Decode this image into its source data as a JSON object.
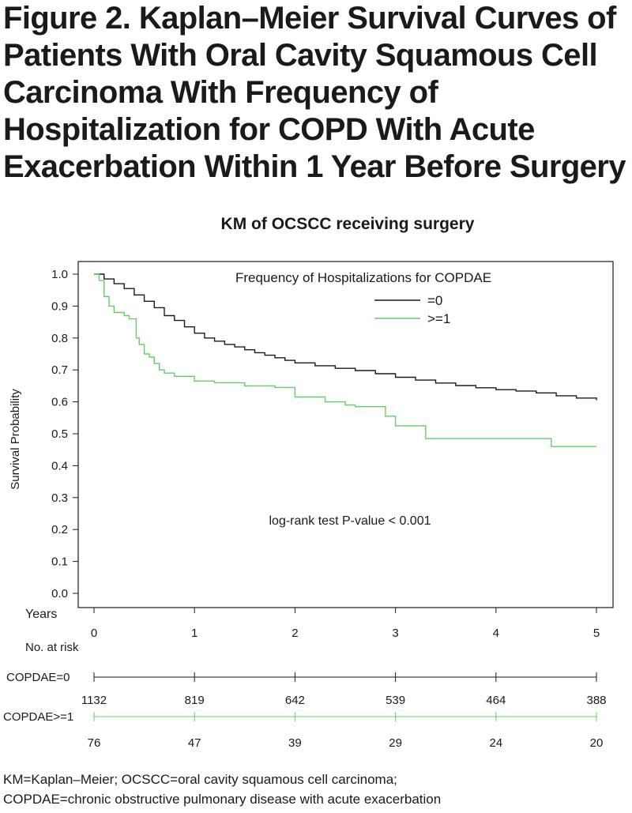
{
  "figure": {
    "title_lines": [
      "Figure 2. Kaplan–Meier Survival Curves of",
      "Patients With Oral Cavity Squamous Cell",
      "Carcinoma With Frequency of",
      "Hospitalization for COPD With Acute",
      "Exacerbation Within 1 Year Before Surgery"
    ],
    "footnote_lines": [
      "KM=Kaplan–Meier; OCSCC=oral cavity squamous cell carcinoma;",
      "COPDAE=chronic obstructive pulmonary disease with acute exacerbation"
    ]
  },
  "chart_data": {
    "type": "line",
    "subtype": "kaplan-meier",
    "title": "KM of OCSCC receiving surgery",
    "xlabel": "Years",
    "ylabel": "Survival Probability",
    "xlim": [
      0,
      5
    ],
    "ylim": [
      0,
      1
    ],
    "x_ticks": [
      0,
      1,
      2,
      3,
      4,
      5
    ],
    "y_ticks": [
      "0.0",
      "0.1",
      "0.2",
      "0.3",
      "0.4",
      "0.5",
      "0.6",
      "0.7",
      "0.8",
      "0.9",
      "1.0"
    ],
    "grid": false,
    "legend_title": "Frequency of Hospitalizations for COPDAE",
    "legend_position": "top-right",
    "annotation": "log-rank test P-value < 0.001",
    "series": [
      {
        "name": "=0",
        "color": "#1a1a1a",
        "x": [
          0,
          0.1,
          0.2,
          0.3,
          0.4,
          0.5,
          0.6,
          0.7,
          0.8,
          0.9,
          1.0,
          1.1,
          1.2,
          1.3,
          1.4,
          1.5,
          1.6,
          1.7,
          1.8,
          1.9,
          2.0,
          2.2,
          2.4,
          2.6,
          2.8,
          3.0,
          3.2,
          3.4,
          3.6,
          3.8,
          4.0,
          4.2,
          4.4,
          4.6,
          4.8,
          5.0
        ],
        "y": [
          1.0,
          0.985,
          0.97,
          0.955,
          0.935,
          0.915,
          0.895,
          0.87,
          0.855,
          0.835,
          0.815,
          0.8,
          0.79,
          0.78,
          0.772,
          0.763,
          0.754,
          0.746,
          0.738,
          0.73,
          0.722,
          0.713,
          0.705,
          0.698,
          0.688,
          0.677,
          0.668,
          0.659,
          0.651,
          0.644,
          0.638,
          0.634,
          0.628,
          0.619,
          0.612,
          0.605
        ]
      },
      {
        "name": ">=1",
        "color": "#66cc66",
        "x": [
          0,
          0.05,
          0.1,
          0.15,
          0.2,
          0.3,
          0.35,
          0.42,
          0.45,
          0.5,
          0.55,
          0.6,
          0.65,
          0.7,
          0.8,
          1.0,
          1.2,
          1.5,
          1.8,
          2.0,
          2.3,
          2.5,
          2.6,
          2.9,
          3.0,
          3.3,
          3.6,
          4.0,
          4.55,
          4.7,
          5.0
        ],
        "y": [
          1.0,
          0.98,
          0.93,
          0.9,
          0.88,
          0.87,
          0.86,
          0.8,
          0.78,
          0.75,
          0.74,
          0.72,
          0.7,
          0.69,
          0.68,
          0.665,
          0.66,
          0.65,
          0.645,
          0.615,
          0.6,
          0.59,
          0.585,
          0.555,
          0.525,
          0.485,
          0.485,
          0.485,
          0.46,
          0.46,
          0.46
        ]
      }
    ],
    "risk_table": {
      "title": "No. at risk",
      "times": [
        0,
        1,
        2,
        3,
        4,
        5
      ],
      "rows": [
        {
          "label": "COPDAE=0",
          "color": "#1a1a1a",
          "counts": [
            "1132",
            "819",
            "642",
            "539",
            "464",
            "388"
          ]
        },
        {
          "label": "COPDAE>=1",
          "color": "#66cc66",
          "counts": [
            "76",
            "47",
            "39",
            "29",
            "24",
            "20"
          ]
        }
      ]
    }
  }
}
